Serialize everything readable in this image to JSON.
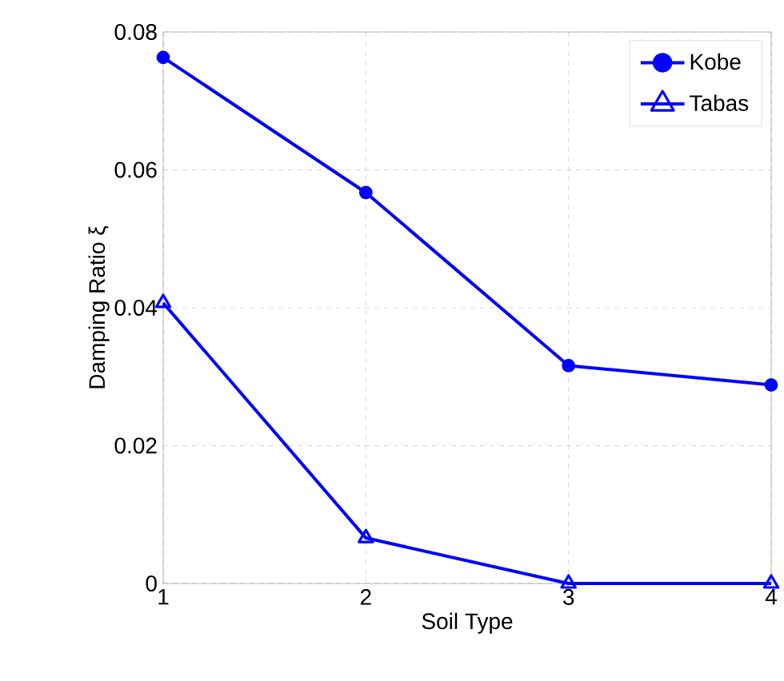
{
  "chart_data": {
    "type": "line",
    "xlabel": "Soil Type",
    "ylabel": "Damping Ratio  ξ",
    "x": [
      1,
      2,
      3,
      4
    ],
    "series": [
      {
        "name": "Kobe",
        "color": "#0000ff",
        "marker": "circle",
        "values": [
          0.0763,
          0.0567,
          0.0316,
          0.0288
        ]
      },
      {
        "name": "Tabas",
        "color": "#0000ff",
        "marker": "triangle",
        "values": [
          0.0407,
          0.0066,
          0,
          0
        ]
      }
    ],
    "xlim": [
      1,
      4
    ],
    "xticks": [
      1,
      2,
      3,
      4
    ],
    "ylim": [
      0,
      0.08
    ],
    "yticks": [
      0,
      0.02,
      0.04,
      0.06,
      0.08
    ],
    "grid": true,
    "legend": "top right",
    "line_style": "solid"
  }
}
